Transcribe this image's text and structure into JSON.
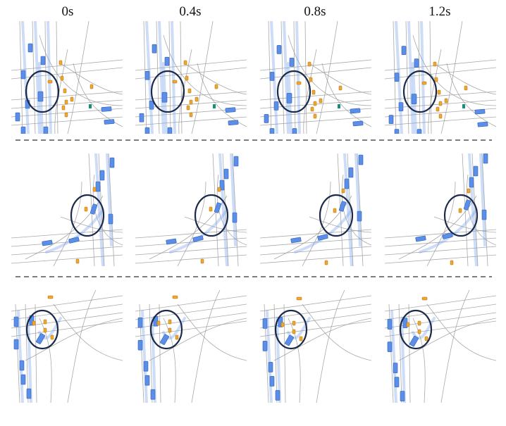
{
  "timesteps": [
    "0s",
    "0.4s",
    "0.8s",
    "1.2s"
  ],
  "colors": {
    "road_line": "#9a9a9a",
    "vehicle": "#5b8ee6",
    "vehicle_stroke": "#2f5fb6",
    "pedestrian": "#f0a830",
    "pedestrian_stroke": "#a86a00",
    "trajectory": "#6f9be8",
    "highlight_circle": "#1c2a4a",
    "signal": "#1a8c7a",
    "separator": "#333333"
  },
  "icons": [
    "vehicle-icon",
    "pedestrian-icon",
    "traffic-signal-icon",
    "focus-circle-icon"
  ]
}
